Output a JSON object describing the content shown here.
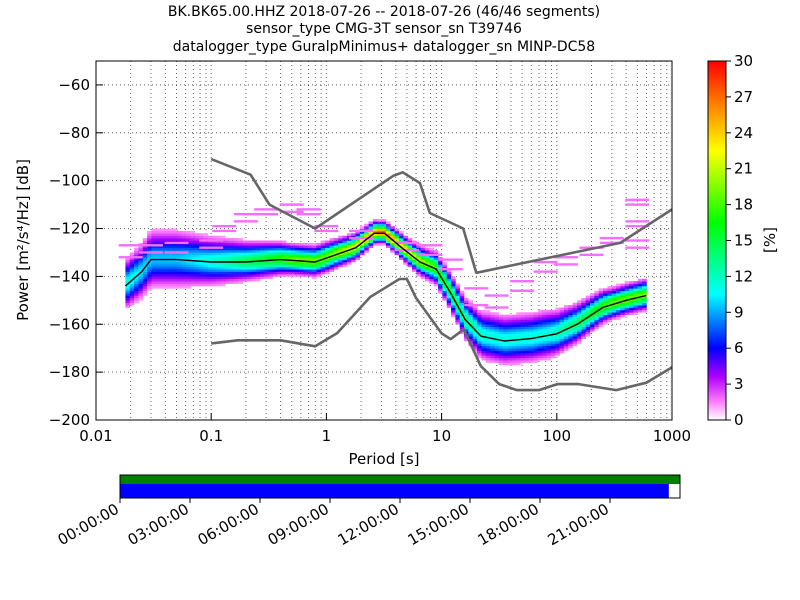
{
  "title_lines": [
    "BK.BK65.00.HHZ   2018-07-26 -- 2018-07-26  (46/46 segments)",
    "sensor_type CMG-3T sensor_sn T39746",
    "datalogger_type GuralpMinimus+ datalogger_sn MINP-DC58"
  ],
  "chart_data": {
    "type": "heatmap",
    "xlabel": "Period [s]",
    "ylabel": "Power [m²/s⁴/Hz] [dB]",
    "xscale": "log",
    "xlim": [
      0.01,
      1000
    ],
    "ylim": [
      -200,
      -50
    ],
    "x_ticks": [
      {
        "value": 0.01,
        "label": "0.01"
      },
      {
        "value": 0.1,
        "label": "0.1"
      },
      {
        "value": 1,
        "label": "1"
      },
      {
        "value": 10,
        "label": "10"
      },
      {
        "value": 100,
        "label": "100"
      },
      {
        "value": 1000,
        "label": "1000"
      }
    ],
    "y_ticks": [
      {
        "value": -60,
        "label": "−60"
      },
      {
        "value": -80,
        "label": "−80"
      },
      {
        "value": -100,
        "label": "−100"
      },
      {
        "value": -120,
        "label": "−120"
      },
      {
        "value": -140,
        "label": "−140"
      },
      {
        "value": -160,
        "label": "−160"
      },
      {
        "value": -180,
        "label": "−180"
      },
      {
        "value": -200,
        "label": "−200"
      }
    ],
    "grid": true,
    "colorbar": {
      "label": "[%]",
      "range": [
        0,
        30
      ],
      "ticks": [
        {
          "value": 0,
          "label": "0"
        },
        {
          "value": 3,
          "label": "3"
        },
        {
          "value": 6,
          "label": "6"
        },
        {
          "value": 9,
          "label": "9"
        },
        {
          "value": 12,
          "label": "12"
        },
        {
          "value": 15,
          "label": "15"
        },
        {
          "value": 18,
          "label": "18"
        },
        {
          "value": 21,
          "label": "21"
        },
        {
          "value": 24,
          "label": "24"
        },
        {
          "value": 27,
          "label": "27"
        },
        {
          "value": 30,
          "label": "30"
        }
      ]
    },
    "nhnm": [
      [
        0.1,
        -91
      ],
      [
        0.22,
        -97.5
      ],
      [
        0.32,
        -110
      ],
      [
        0.8,
        -120
      ],
      [
        3.8,
        -98
      ],
      [
        4.6,
        -96.5
      ],
      [
        6.5,
        -101
      ],
      [
        7.9,
        -113.5
      ],
      [
        15.4,
        -120
      ],
      [
        20,
        -138.5
      ],
      [
        354.8,
        -126
      ],
      [
        1000,
        -112
      ]
    ],
    "nlnm": [
      [
        0.1,
        -168
      ],
      [
        0.17,
        -166.7
      ],
      [
        0.4,
        -166.7
      ],
      [
        0.8,
        -169.2
      ],
      [
        1.24,
        -163.7
      ],
      [
        2.4,
        -148.6
      ],
      [
        4.3,
        -141.1
      ],
      [
        5,
        -141.1
      ],
      [
        6,
        -149
      ],
      [
        10,
        -163.8
      ],
      [
        12,
        -166.2
      ],
      [
        15.6,
        -162.1
      ],
      [
        21.9,
        -177.5
      ],
      [
        31.6,
        -185
      ],
      [
        45,
        -187.5
      ],
      [
        70,
        -187.5
      ],
      [
        101,
        -185
      ],
      [
        154,
        -185
      ],
      [
        328,
        -187.5
      ],
      [
        600,
        -184.4
      ],
      [
        1000,
        -178
      ]
    ],
    "mean_curve": [
      [
        0.018,
        -144
      ],
      [
        0.025,
        -138
      ],
      [
        0.03,
        -133
      ],
      [
        0.05,
        -133
      ],
      [
        0.1,
        -134
      ],
      [
        0.2,
        -134
      ],
      [
        0.4,
        -133
      ],
      [
        0.8,
        -134
      ],
      [
        1.2,
        -131
      ],
      [
        1.8,
        -128
      ],
      [
        2.6,
        -122
      ],
      [
        3.2,
        -122
      ],
      [
        4.5,
        -128
      ],
      [
        6.5,
        -134
      ],
      [
        9,
        -137
      ],
      [
        12,
        -147
      ],
      [
        16,
        -158
      ],
      [
        22,
        -165
      ],
      [
        35,
        -167
      ],
      [
        60,
        -166
      ],
      [
        100,
        -164
      ],
      [
        150,
        -160
      ],
      [
        250,
        -153
      ],
      [
        400,
        -150
      ],
      [
        600,
        -148
      ]
    ],
    "spread": [
      [
        0.018,
        5
      ],
      [
        0.03,
        6
      ],
      [
        0.05,
        6
      ],
      [
        0.1,
        5
      ],
      [
        0.2,
        4
      ],
      [
        0.5,
        3
      ],
      [
        1,
        3
      ],
      [
        2,
        2.5
      ],
      [
        3,
        2
      ],
      [
        5,
        2.5
      ],
      [
        8,
        3
      ],
      [
        15,
        4
      ],
      [
        25,
        5
      ],
      [
        40,
        5
      ],
      [
        80,
        5
      ],
      [
        150,
        4
      ],
      [
        300,
        3
      ],
      [
        600,
        3
      ]
    ],
    "outliers": [
      [
        0.02,
        -127,
        -132
      ],
      [
        0.03,
        -127,
        -130
      ],
      [
        0.05,
        -126,
        -130
      ],
      [
        0.1,
        -125,
        -128
      ],
      [
        0.13,
        -119,
        -121
      ],
      [
        0.2,
        -114,
        -117
      ],
      [
        0.3,
        -112,
        -114
      ],
      [
        0.5,
        -110,
        -113
      ],
      [
        0.7,
        -112,
        -114
      ],
      [
        1,
        -119,
        -121
      ],
      [
        2,
        -121,
        -124
      ],
      [
        5,
        -126,
        -129
      ],
      [
        8,
        -127,
        -131
      ],
      [
        12,
        -133,
        -137
      ],
      [
        20,
        -145,
        -152
      ],
      [
        30,
        -148,
        -153
      ],
      [
        50,
        -142,
        -146
      ],
      [
        80,
        -134,
        -138
      ],
      [
        120,
        -132,
        -135
      ],
      [
        200,
        -128,
        -131
      ],
      [
        300,
        -124,
        -126
      ],
      [
        500,
        -108,
        -110
      ],
      [
        500,
        -117,
        -119
      ],
      [
        500,
        -125,
        -128
      ]
    ],
    "timeline": {
      "ticks": [
        "00:00:00",
        "03:00:00",
        "06:00:00",
        "09:00:00",
        "12:00:00",
        "15:00:00",
        "18:00:00",
        "21:00:00"
      ],
      "coverage": 0.98
    },
    "colors": {
      "model_line": "#666666",
      "mean_line": "#000000",
      "timeline_top": "#008000",
      "timeline_bottom": "#0000ff"
    }
  }
}
